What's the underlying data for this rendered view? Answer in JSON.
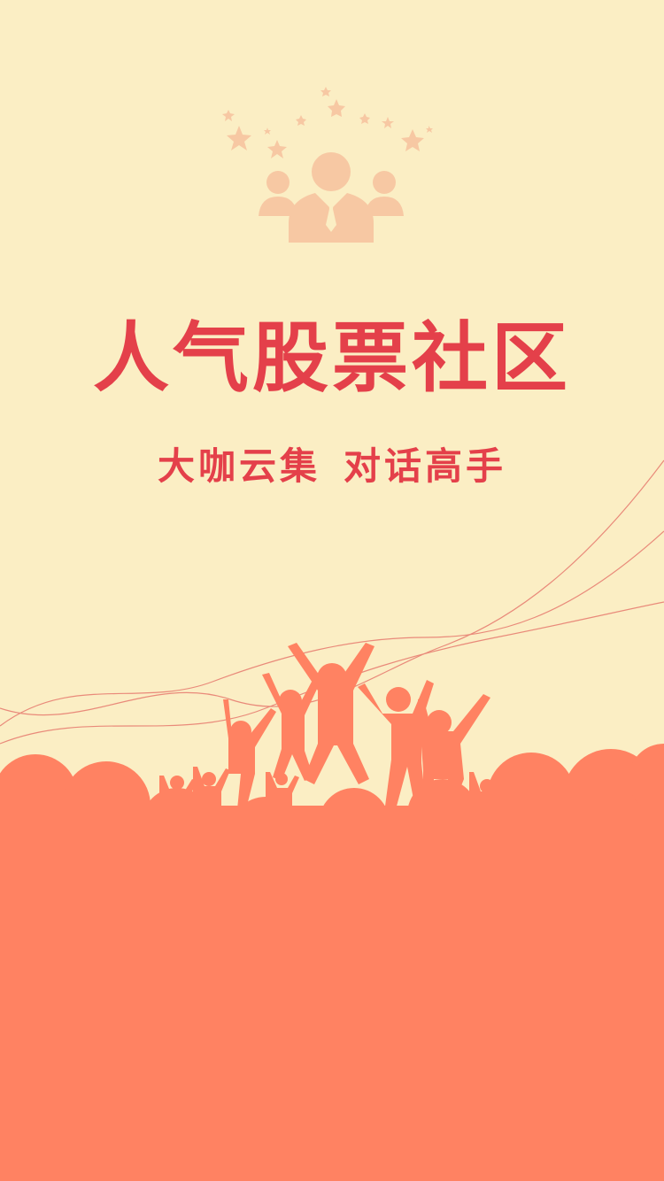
{
  "splash": {
    "title": "人气股票社区",
    "subtitle_part1": "大咖云集",
    "subtitle_part2": "对话高手"
  },
  "colors": {
    "background": "#FBEEC4",
    "accent_red": "#E4404A",
    "crowd_coral": "#FF8262",
    "icon_peach": "#F7C8A3",
    "wave_line": "#E98A7A"
  },
  "icons": {
    "top_icon": "users-group-stars-icon",
    "crowd": "cheering-crowd-silhouette"
  }
}
